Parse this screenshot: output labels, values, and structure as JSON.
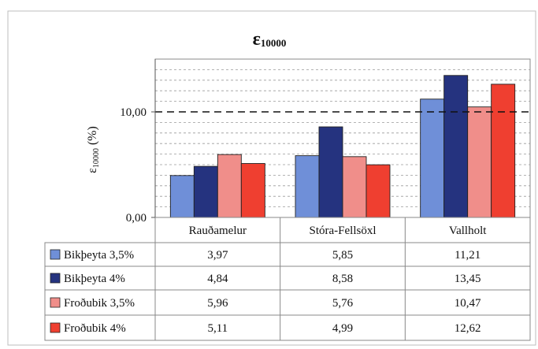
{
  "chart_data": {
    "type": "bar",
    "title": {
      "base": "ε",
      "sub": "10000"
    },
    "ylabel": {
      "base": "ε",
      "sub": "10000",
      "unit": " (%)"
    },
    "xlabel": "",
    "categories": [
      "Rauðamelur",
      "Stóra-Fellsöxl",
      "Vallholt"
    ],
    "series": [
      {
        "name": "Bikþeyta 3,5%",
        "color": "#6f8fd8",
        "values": [
          3.97,
          5.85,
          11.21
        ],
        "labels": [
          "3,97",
          "5,85",
          "11,21"
        ]
      },
      {
        "name": "Bikþeyta 4%",
        "color": "#25337f",
        "values": [
          4.84,
          8.58,
          13.45
        ],
        "labels": [
          "4,84",
          "8,58",
          "13,45"
        ]
      },
      {
        "name": "Froðubik 3,5%",
        "color": "#f08e8a",
        "values": [
          5.96,
          5.76,
          10.47
        ],
        "labels": [
          "5,96",
          "5,76",
          "10,47"
        ]
      },
      {
        "name": "Froðubik 4%",
        "color": "#ef3f30",
        "values": [
          5.11,
          4.99,
          12.62
        ],
        "labels": [
          "5,11",
          "4,99",
          "12,62"
        ]
      }
    ],
    "ylim": [
      0,
      15
    ],
    "yticks": [
      {
        "value": 0,
        "label": "0,00"
      },
      {
        "value": 10,
        "label": "10,00"
      }
    ],
    "reference_line": 10,
    "grid": true,
    "data_table": true
  }
}
